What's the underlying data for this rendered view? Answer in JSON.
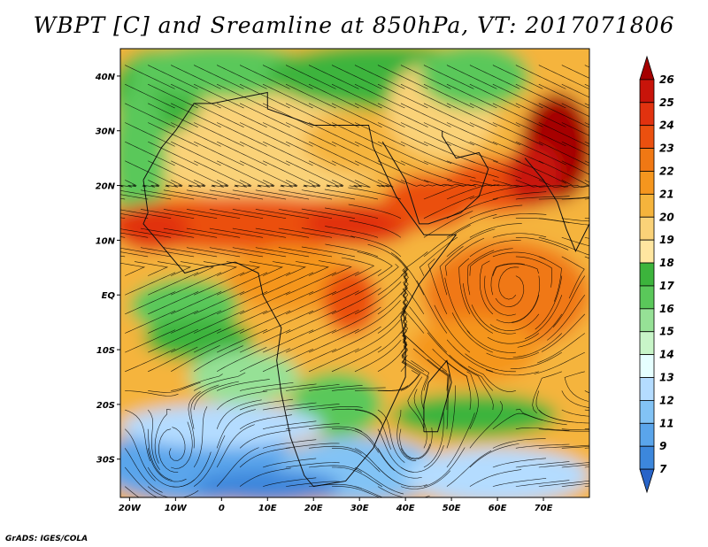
{
  "title": "WBPT [C] and Sreamline at 850hPa, VT: 2017071806",
  "credit": "GrADS: IGES/COLA",
  "map": {
    "lon_range": [
      -22,
      80
    ],
    "lat_range": [
      -37,
      45
    ],
    "lon_ticks": [
      {
        "value": -20,
        "label": "20W"
      },
      {
        "value": -10,
        "label": "10W"
      },
      {
        "value": 0,
        "label": "0"
      },
      {
        "value": 10,
        "label": "10E"
      },
      {
        "value": 20,
        "label": "20E"
      },
      {
        "value": 30,
        "label": "30E"
      },
      {
        "value": 40,
        "label": "40E"
      },
      {
        "value": 50,
        "label": "50E"
      },
      {
        "value": 60,
        "label": "60E"
      },
      {
        "value": 70,
        "label": "70E"
      }
    ],
    "lat_ticks": [
      {
        "value": 40,
        "label": "40N"
      },
      {
        "value": 30,
        "label": "30N"
      },
      {
        "value": 20,
        "label": "20N"
      },
      {
        "value": 10,
        "label": "10N"
      },
      {
        "value": 0,
        "label": "EQ"
      },
      {
        "value": -10,
        "label": "10S"
      },
      {
        "value": -20,
        "label": "20S"
      },
      {
        "value": -30,
        "label": "30S"
      }
    ]
  },
  "colorbar": {
    "levels": [
      "26",
      "25",
      "24",
      "23",
      "22",
      "21",
      "20",
      "19",
      "18",
      "17",
      "16",
      "15",
      "14",
      "13",
      "12",
      "11",
      "9",
      "7"
    ],
    "colors": [
      "#a50000",
      "#c8140a",
      "#e1320f",
      "#eb500f",
      "#f07814",
      "#f5961e",
      "#f5b43c",
      "#fad278",
      "#ffe6a0",
      "#3cb43c",
      "#5ac85a",
      "#96e196",
      "#c8f5c8",
      "#e6ffff",
      "#b4dcff",
      "#82c3f5",
      "#5aa5eb",
      "#3c87dc",
      "#2864c8"
    ]
  }
}
